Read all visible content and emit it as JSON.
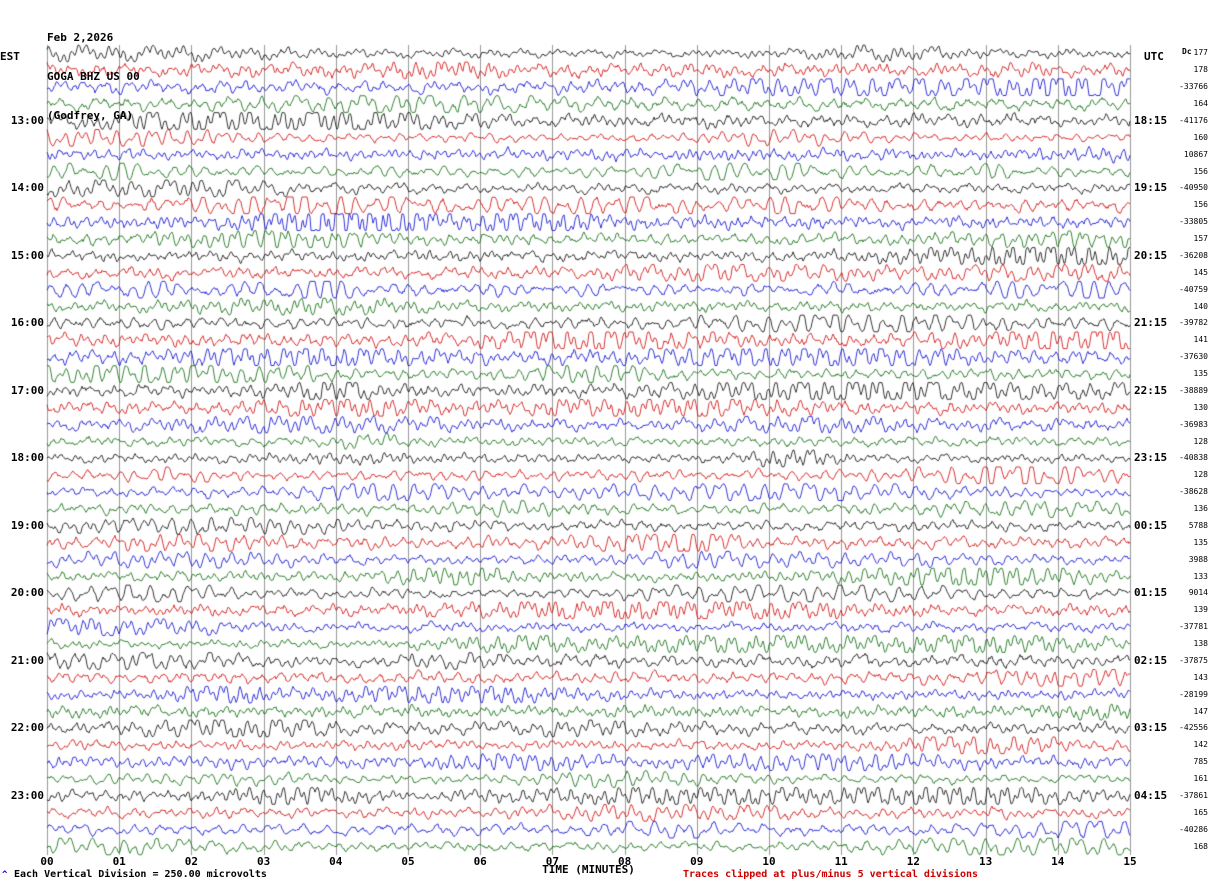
{
  "header": {
    "date": "Feb 2,2026",
    "station": "GOGA BHZ US 00",
    "location": "(Godfrey, GA)"
  },
  "axes": {
    "left_label": "EST",
    "right_label": "UTC",
    "dc_header": "Dc",
    "x_title": "TIME (MINUTES)",
    "x_ticks": [
      "00",
      "01",
      "02",
      "03",
      "04",
      "05",
      "06",
      "07",
      "08",
      "09",
      "10",
      "11",
      "12",
      "13",
      "14",
      "15"
    ]
  },
  "footer": {
    "scale_note": "Each Vertical Division =  250.00 microvolts",
    "clip_note": "Traces clipped at plus/minus 5 vertical divisions",
    "corner_mark": "^"
  },
  "chart_data": {
    "type": "line",
    "title": "GOGA BHZ US 00 (Godfrey, GA) helicorder — Feb 2,2026",
    "xlabel": "TIME (MINUTES)",
    "x_range_minutes": [
      0,
      15
    ],
    "minutes_per_line": 15,
    "grid": "vertical-every-minute",
    "clip_divisions": 5,
    "microvolts_per_division": 250.0,
    "colors": {
      "black": "#000000",
      "red": "#cc0000",
      "blue": "#0000cc",
      "green": "#006600",
      "grid": "#999999"
    },
    "trace_color_cycle": [
      "black",
      "red",
      "blue",
      "green"
    ],
    "rows": [
      {
        "color": "black",
        "dc": 177
      },
      {
        "color": "red",
        "dc": 178
      },
      {
        "color": "blue",
        "dc": -33766
      },
      {
        "color": "green",
        "dc": 164
      },
      {
        "color": "black",
        "est": "13:00",
        "utc": "18:15",
        "dc": -41176
      },
      {
        "color": "red",
        "dc": 160
      },
      {
        "color": "blue",
        "dc": 10867
      },
      {
        "color": "green",
        "dc": 156
      },
      {
        "color": "black",
        "est": "14:00",
        "utc": "19:15",
        "dc": -40950
      },
      {
        "color": "red",
        "dc": 156
      },
      {
        "color": "blue",
        "dc": -33805
      },
      {
        "color": "green",
        "dc": 157
      },
      {
        "color": "black",
        "est": "15:00",
        "utc": "20:15",
        "dc": -36208
      },
      {
        "color": "red",
        "dc": 145
      },
      {
        "color": "blue",
        "dc": -40759
      },
      {
        "color": "green",
        "dc": 140
      },
      {
        "color": "black",
        "est": "16:00",
        "utc": "21:15",
        "dc": -39782
      },
      {
        "color": "red",
        "dc": 141
      },
      {
        "color": "blue",
        "dc": -37630
      },
      {
        "color": "green",
        "dc": 135
      },
      {
        "color": "black",
        "est": "17:00",
        "utc": "22:15",
        "dc": -38889
      },
      {
        "color": "red",
        "dc": 130
      },
      {
        "color": "blue",
        "dc": -36983
      },
      {
        "color": "green",
        "dc": 128
      },
      {
        "color": "black",
        "est": "18:00",
        "utc": "23:15",
        "dc": -40838
      },
      {
        "color": "red",
        "dc": 128
      },
      {
        "color": "blue",
        "dc": -38628
      },
      {
        "color": "green",
        "dc": 136
      },
      {
        "color": "black",
        "est": "19:00",
        "utc": "00:15",
        "dc": 5788
      },
      {
        "color": "red",
        "dc": 135
      },
      {
        "color": "blue",
        "dc": 3988
      },
      {
        "color": "green",
        "dc": 133
      },
      {
        "color": "black",
        "est": "20:00",
        "utc": "01:15",
        "dc": 9014
      },
      {
        "color": "red",
        "dc": 139
      },
      {
        "color": "blue",
        "dc": -37781
      },
      {
        "color": "green",
        "dc": 138
      },
      {
        "color": "black",
        "est": "21:00",
        "utc": "02:15",
        "dc": -37875
      },
      {
        "color": "red",
        "dc": 143
      },
      {
        "color": "blue",
        "dc": -28199
      },
      {
        "color": "green",
        "dc": 147
      },
      {
        "color": "black",
        "est": "22:00",
        "utc": "03:15",
        "dc": -42556
      },
      {
        "color": "red",
        "dc": 142
      },
      {
        "color": "blue",
        "dc": 785
      },
      {
        "color": "green",
        "dc": 161
      },
      {
        "color": "black",
        "est": "23:00",
        "utc": "04:15",
        "dc": -37861
      },
      {
        "color": "red",
        "dc": 165
      },
      {
        "color": "blue",
        "dc": -40286
      },
      {
        "color": "green",
        "dc": 168
      }
    ]
  }
}
